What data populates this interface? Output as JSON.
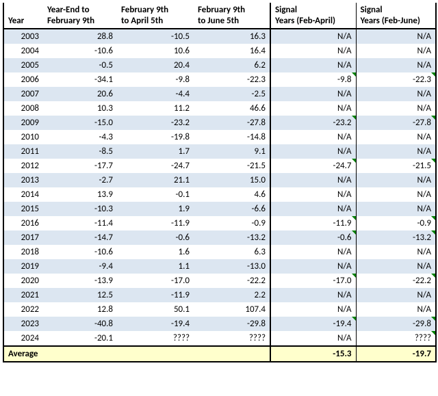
{
  "columns": [
    {
      "line1": "",
      "line2": "Year"
    },
    {
      "line1": "Year-End to",
      "line2": "February 9th"
    },
    {
      "line1": "February 9th",
      "line2": "to April 5th"
    },
    {
      "line1": "February 9th",
      "line2": "to June 5th"
    },
    {
      "line1": "Signal",
      "line2": "Years (Feb-April)"
    },
    {
      "line1": "Signal",
      "line2": "Years (Feb-June)"
    }
  ],
  "rows": [
    {
      "year": "2003",
      "c1": "28.8",
      "c2": "-10.5",
      "c3": "16.3",
      "c4": "N/A",
      "c5": "N/A",
      "tag4": false,
      "tag5": false
    },
    {
      "year": "2004",
      "c1": "-10.6",
      "c2": "10.6",
      "c3": "16.4",
      "c4": "N/A",
      "c5": "N/A",
      "tag4": false,
      "tag5": false
    },
    {
      "year": "2005",
      "c1": "-0.5",
      "c2": "20.4",
      "c3": "6.2",
      "c4": "N/A",
      "c5": "N/A",
      "tag4": false,
      "tag5": false
    },
    {
      "year": "2006",
      "c1": "-34.1",
      "c2": "-9.8",
      "c3": "-22.3",
      "c4": "-9.8",
      "c5": "-22.3",
      "tag4": true,
      "tag5": true
    },
    {
      "year": "2007",
      "c1": "20.6",
      "c2": "-4.4",
      "c3": "-2.5",
      "c4": "N/A",
      "c5": "N/A",
      "tag4": false,
      "tag5": false
    },
    {
      "year": "2008",
      "c1": "10.3",
      "c2": "11.2",
      "c3": "46.6",
      "c4": "N/A",
      "c5": "N/A",
      "tag4": false,
      "tag5": false
    },
    {
      "year": "2009",
      "c1": "-15.0",
      "c2": "-23.2",
      "c3": "-27.8",
      "c4": "-23.2",
      "c5": "-27.8",
      "tag4": true,
      "tag5": true
    },
    {
      "year": "2010",
      "c1": "-4.3",
      "c2": "-19.8",
      "c3": "-14.8",
      "c4": "N/A",
      "c5": "N/A",
      "tag4": false,
      "tag5": false
    },
    {
      "year": "2011",
      "c1": "-8.5",
      "c2": "1.7",
      "c3": "9.1",
      "c4": "N/A",
      "c5": "N/A",
      "tag4": false,
      "tag5": false
    },
    {
      "year": "2012",
      "c1": "-17.7",
      "c2": "-24.7",
      "c3": "-21.5",
      "c4": "-24.7",
      "c5": "-21.5",
      "tag4": true,
      "tag5": true
    },
    {
      "year": "2013",
      "c1": "-2.7",
      "c2": "21.1",
      "c3": "15.0",
      "c4": "N/A",
      "c5": "N/A",
      "tag4": false,
      "tag5": false
    },
    {
      "year": "2014",
      "c1": "13.9",
      "c2": "-0.1",
      "c3": "4.6",
      "c4": "N/A",
      "c5": "N/A",
      "tag4": false,
      "tag5": false
    },
    {
      "year": "2015",
      "c1": "-10.3",
      "c2": "1.9",
      "c3": "-6.6",
      "c4": "N/A",
      "c5": "N/A",
      "tag4": false,
      "tag5": false
    },
    {
      "year": "2016",
      "c1": "-11.4",
      "c2": "-11.9",
      "c3": "-0.9",
      "c4": "-11.9",
      "c5": "-0.9",
      "tag4": true,
      "tag5": true
    },
    {
      "year": "2017",
      "c1": "-14.7",
      "c2": "-0.6",
      "c3": "-13.2",
      "c4": "-0.6",
      "c5": "-13.2",
      "tag4": true,
      "tag5": true
    },
    {
      "year": "2018",
      "c1": "-10.6",
      "c2": "1.6",
      "c3": "6.3",
      "c4": "N/A",
      "c5": "N/A",
      "tag4": false,
      "tag5": false
    },
    {
      "year": "2019",
      "c1": "-9.4",
      "c2": "1.1",
      "c3": "-13.0",
      "c4": "N/A",
      "c5": "N/A",
      "tag4": false,
      "tag5": false
    },
    {
      "year": "2020",
      "c1": "-13.9",
      "c2": "-17.0",
      "c3": "-22.2",
      "c4": "-17.0",
      "c5": "-22.2",
      "tag4": true,
      "tag5": true
    },
    {
      "year": "2021",
      "c1": "12.5",
      "c2": "-11.9",
      "c3": "2.2",
      "c4": "N/A",
      "c5": "N/A",
      "tag4": false,
      "tag5": false
    },
    {
      "year": "2022",
      "c1": "12.8",
      "c2": "50.1",
      "c3": "107.4",
      "c4": "N/A",
      "c5": "N/A",
      "tag4": false,
      "tag5": false
    },
    {
      "year": "2023",
      "c1": "-40.8",
      "c2": "-19.4",
      "c3": "-29.8",
      "c4": "-19.4",
      "c5": "-29.8",
      "tag4": true,
      "tag5": true
    },
    {
      "year": "2024",
      "c1": "-20.1",
      "c2": "????",
      "c3": "????",
      "c4": "N/A",
      "c5": "????",
      "tag4": false,
      "tag5": true
    }
  ],
  "footer": {
    "label": "Average",
    "c1": "",
    "c2": "",
    "c3": "",
    "c4": "-15.3",
    "c5": "-19.7"
  },
  "colors": {
    "band": "#dce6f1",
    "footer_bg": "#ffffcc",
    "border": "#000000",
    "tag": "#008000"
  }
}
